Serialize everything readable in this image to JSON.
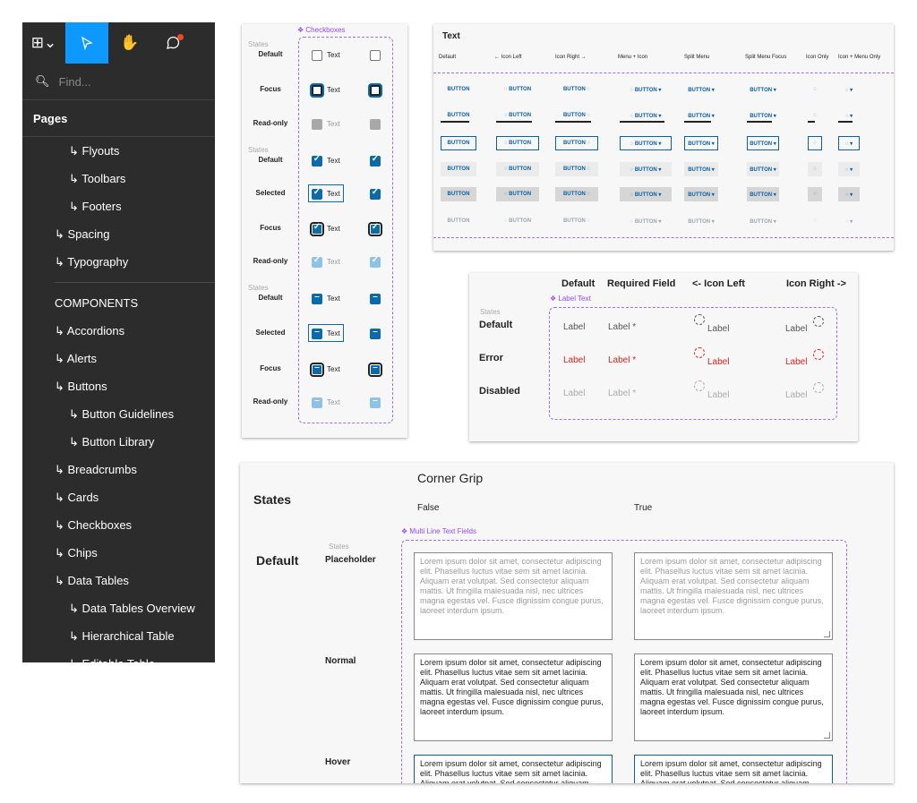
{
  "figma": {
    "find_placeholder": "Find...",
    "pages_label": "Pages",
    "items": [
      {
        "label": "↳ Flyouts",
        "indent": 2
      },
      {
        "label": "↳ Toolbars",
        "indent": 2
      },
      {
        "label": "↳ Footers",
        "indent": 2
      },
      {
        "label": "↳ Spacing",
        "indent": 1
      },
      {
        "label": "↳ Typography",
        "indent": 1
      }
    ],
    "section_label": "COMPONENTS",
    "components": [
      {
        "label": "↳ Accordions",
        "indent": 1
      },
      {
        "label": "↳ Alerts",
        "indent": 1
      },
      {
        "label": "↳ Buttons",
        "indent": 1
      },
      {
        "label": "↳ Button Guidelines",
        "indent": 2
      },
      {
        "label": "↳ Button Library",
        "indent": 2
      },
      {
        "label": "↳ Breadcrumbs",
        "indent": 1
      },
      {
        "label": "↳ Cards",
        "indent": 1
      },
      {
        "label": "↳ Checkboxes",
        "indent": 1
      },
      {
        "label": "↳ Chips",
        "indent": 1
      },
      {
        "label": "↳ Data Tables",
        "indent": 1
      },
      {
        "label": "↳ Data Tables Overview",
        "indent": 2
      },
      {
        "label": "↳ Hierarchical Table",
        "indent": 2
      },
      {
        "label": "↳ Editable Table",
        "indent": 2
      }
    ],
    "icons": {
      "logo": "figma-logo-icon",
      "move": "move-tool-icon",
      "hand": "hand-tool-icon",
      "comment": "comment-icon"
    }
  },
  "checkboxes": {
    "component_label": "❖ Checkboxes",
    "states_small": "States",
    "rows": [
      {
        "label": "Default",
        "text": "Text"
      },
      {
        "label": "Focus",
        "text": "Text"
      },
      {
        "label": "Read-only",
        "text": "Text"
      },
      {
        "label": "Default",
        "text": "Text"
      },
      {
        "label": "Selected",
        "text": "Text"
      },
      {
        "label": "Focus",
        "text": "Text"
      },
      {
        "label": "Read-only",
        "text": "Text"
      },
      {
        "label": "Default",
        "text": "Text"
      },
      {
        "label": "Selected",
        "text": "Text"
      },
      {
        "label": "Focus",
        "text": "Text"
      },
      {
        "label": "Read-only",
        "text": "Text"
      }
    ]
  },
  "buttons": {
    "title": "Text",
    "columns": [
      "Default",
      "← Icon Left",
      "Icon Right →",
      "Menu + Icon",
      "Split Menu",
      "Split Menu Focus",
      "Icon Only",
      "Icon + Menu Only"
    ],
    "button_label": "BUTTON"
  },
  "labels": {
    "columns": [
      "Default",
      "Required Field",
      "<- Icon Left",
      "Icon Right ->"
    ],
    "component_label": "❖ Label Text",
    "states_small": "States",
    "rows": [
      {
        "state": "Default",
        "label": "Label",
        "required": "Label *"
      },
      {
        "state": "Error",
        "label": "Label",
        "required": "Label *"
      },
      {
        "state": "Disabled",
        "label": "Label",
        "required": "Label *"
      }
    ],
    "colors": {
      "default": "#555555",
      "error": "#e0201c",
      "disabled": "#aaaaaa"
    }
  },
  "multiline": {
    "title": "Corner Grip",
    "states_heading": "States",
    "col_false": "False",
    "col_true": "True",
    "component_label": "❖ Multi Line Text Fields",
    "row_default": "Default",
    "states_small": "States",
    "row_labels": [
      "Placeholder",
      "Normal",
      "Hover"
    ],
    "lorem": "Lorem ipsum dolor sit amet, consectetur adipiscing elit. Phasellus luctus vitae sem sit amet lacinia. Aliquam erat volutpat. Sed consectetur aliquam mattis. Ut fringilla malesuada nisl, nec ultrices magna egestas vel. Fusce dignissim congue purus, laoreet interdum ipsum."
  }
}
